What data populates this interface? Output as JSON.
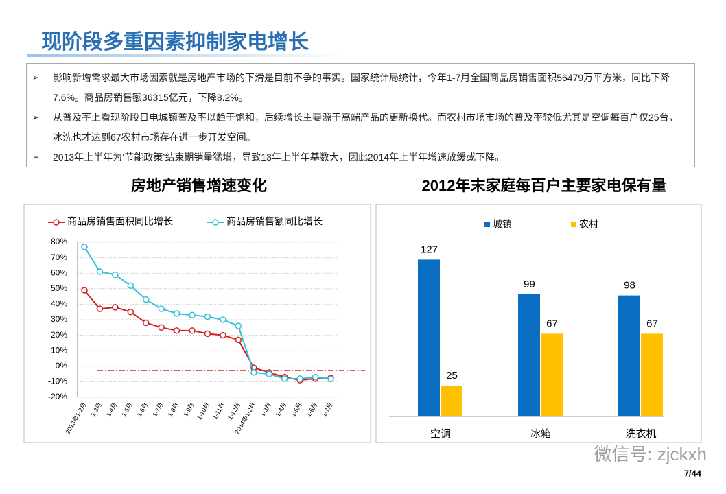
{
  "header": {
    "title": "现阶段多重因素抑制家电增长"
  },
  "bullets": [
    "影响新增需求最大市场因素就是房地产市场的下滑是目前不争的事实。国家统计局统计，今年1-7月全国商品房销售面积56479万平方米，同比下降7.6%。商品房销售额36315亿元，下降8.2%。",
    "从普及率上看现阶段日电城镇普及率以趋于饱和，后续增长主要源于高端产品的更新换代。而农村市场市场的普及率较低尤其是空调每百户仅25台，冰洗也才达到67农村市场存在进一步开发空间。",
    "2013年上半年为‘节能政策’结束期销量猛增，导致13年上半年基数大，因此2014年上半年增速放缓或下降。"
  ],
  "chart_data": [
    {
      "type": "line",
      "title": "房地产销售增速变化",
      "categories": [
        "2013年1-2月",
        "1-3月",
        "1-4月",
        "1-5月",
        "1-6月",
        "1-7月",
        "1-8月",
        "1-9月",
        "1-10月",
        "1-11月",
        "1-12月",
        "2014年1-2月",
        "1-3月",
        "1-4月",
        "1-5月",
        "1-6月",
        "1-7月"
      ],
      "series": [
        {
          "name": "商品房销售面积同比增长",
          "color": "#d42020",
          "values": [
            49,
            37,
            38,
            35,
            28,
            25,
            23,
            23,
            21,
            20,
            17,
            -1,
            -4,
            -7,
            -9,
            -8,
            -7.6
          ]
        },
        {
          "name": "商品房销售额同比增长",
          "color": "#33bfd6",
          "values": [
            77,
            61,
            59,
            52,
            43,
            37,
            34,
            33,
            32,
            30,
            26,
            -4,
            -5,
            -8,
            -8,
            -7,
            -8.2
          ]
        }
      ],
      "ylim": [
        -20,
        80
      ],
      "yticks": [
        {
          "value": -20,
          "label": "-20%"
        },
        {
          "value": -10,
          "label": "-10%"
        },
        {
          "value": 0,
          "label": "0%"
        },
        {
          "value": 10,
          "label": "10%"
        },
        {
          "value": 20,
          "label": "20%"
        },
        {
          "value": 30,
          "label": "30%"
        },
        {
          "value": 40,
          "label": "40%"
        },
        {
          "value": 50,
          "label": "50%"
        },
        {
          "value": 60,
          "label": "60%"
        },
        {
          "value": 70,
          "label": "70%"
        },
        {
          "value": 80,
          "label": "80%"
        }
      ],
      "grid": true
    },
    {
      "type": "bar",
      "title": "2012年末家庭每百户主要家电保有量",
      "categories": [
        "空调",
        "冰箱",
        "洗衣机"
      ],
      "series": [
        {
          "name": "城镇",
          "color": "#0a6fc2",
          "values": [
            127,
            99,
            98
          ]
        },
        {
          "name": "农村",
          "color": "#ffc000",
          "values": [
            25,
            67,
            67
          ]
        }
      ]
    }
  ],
  "footer": {
    "watermark": "微信号: zjckxh",
    "page": "7/44"
  }
}
